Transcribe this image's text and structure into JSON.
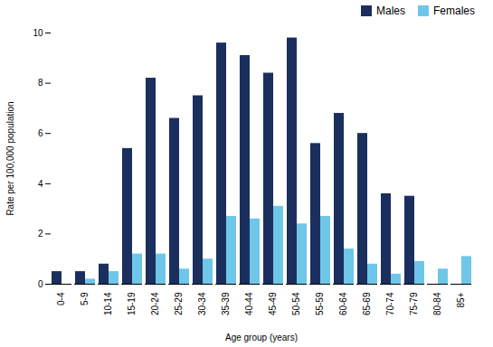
{
  "chart_data": {
    "type": "bar",
    "categories": [
      "0-4",
      "5-9",
      "10-14",
      "15-19",
      "20-24",
      "25-29",
      "30-34",
      "35-39",
      "40-44",
      "45-49",
      "50-54",
      "55-59",
      "60-64",
      "65-69",
      "70-74",
      "75-79",
      "80-84",
      "85+"
    ],
    "series": [
      {
        "name": "Males",
        "color": "#1a2f5e",
        "values": [
          0.5,
          0.5,
          0.8,
          5.4,
          8.2,
          6.6,
          7.5,
          9.6,
          9.1,
          8.4,
          9.8,
          5.6,
          6.8,
          6.0,
          3.6,
          3.5,
          0.0,
          0.0
        ]
      },
      {
        "name": "Females",
        "color": "#6ec6e8",
        "values": [
          0.0,
          0.2,
          0.5,
          1.2,
          1.2,
          0.6,
          1.0,
          2.7,
          2.6,
          3.1,
          2.4,
          2.7,
          1.4,
          0.8,
          0.4,
          0.9,
          0.6,
          1.1
        ]
      }
    ],
    "xlabel": "Age group (years)",
    "ylabel": "Rate per 100,000 population",
    "ylim": [
      0,
      10
    ],
    "yticks": [
      0,
      2,
      4,
      6,
      8,
      10
    ],
    "grid": false,
    "legend": "upper right"
  }
}
